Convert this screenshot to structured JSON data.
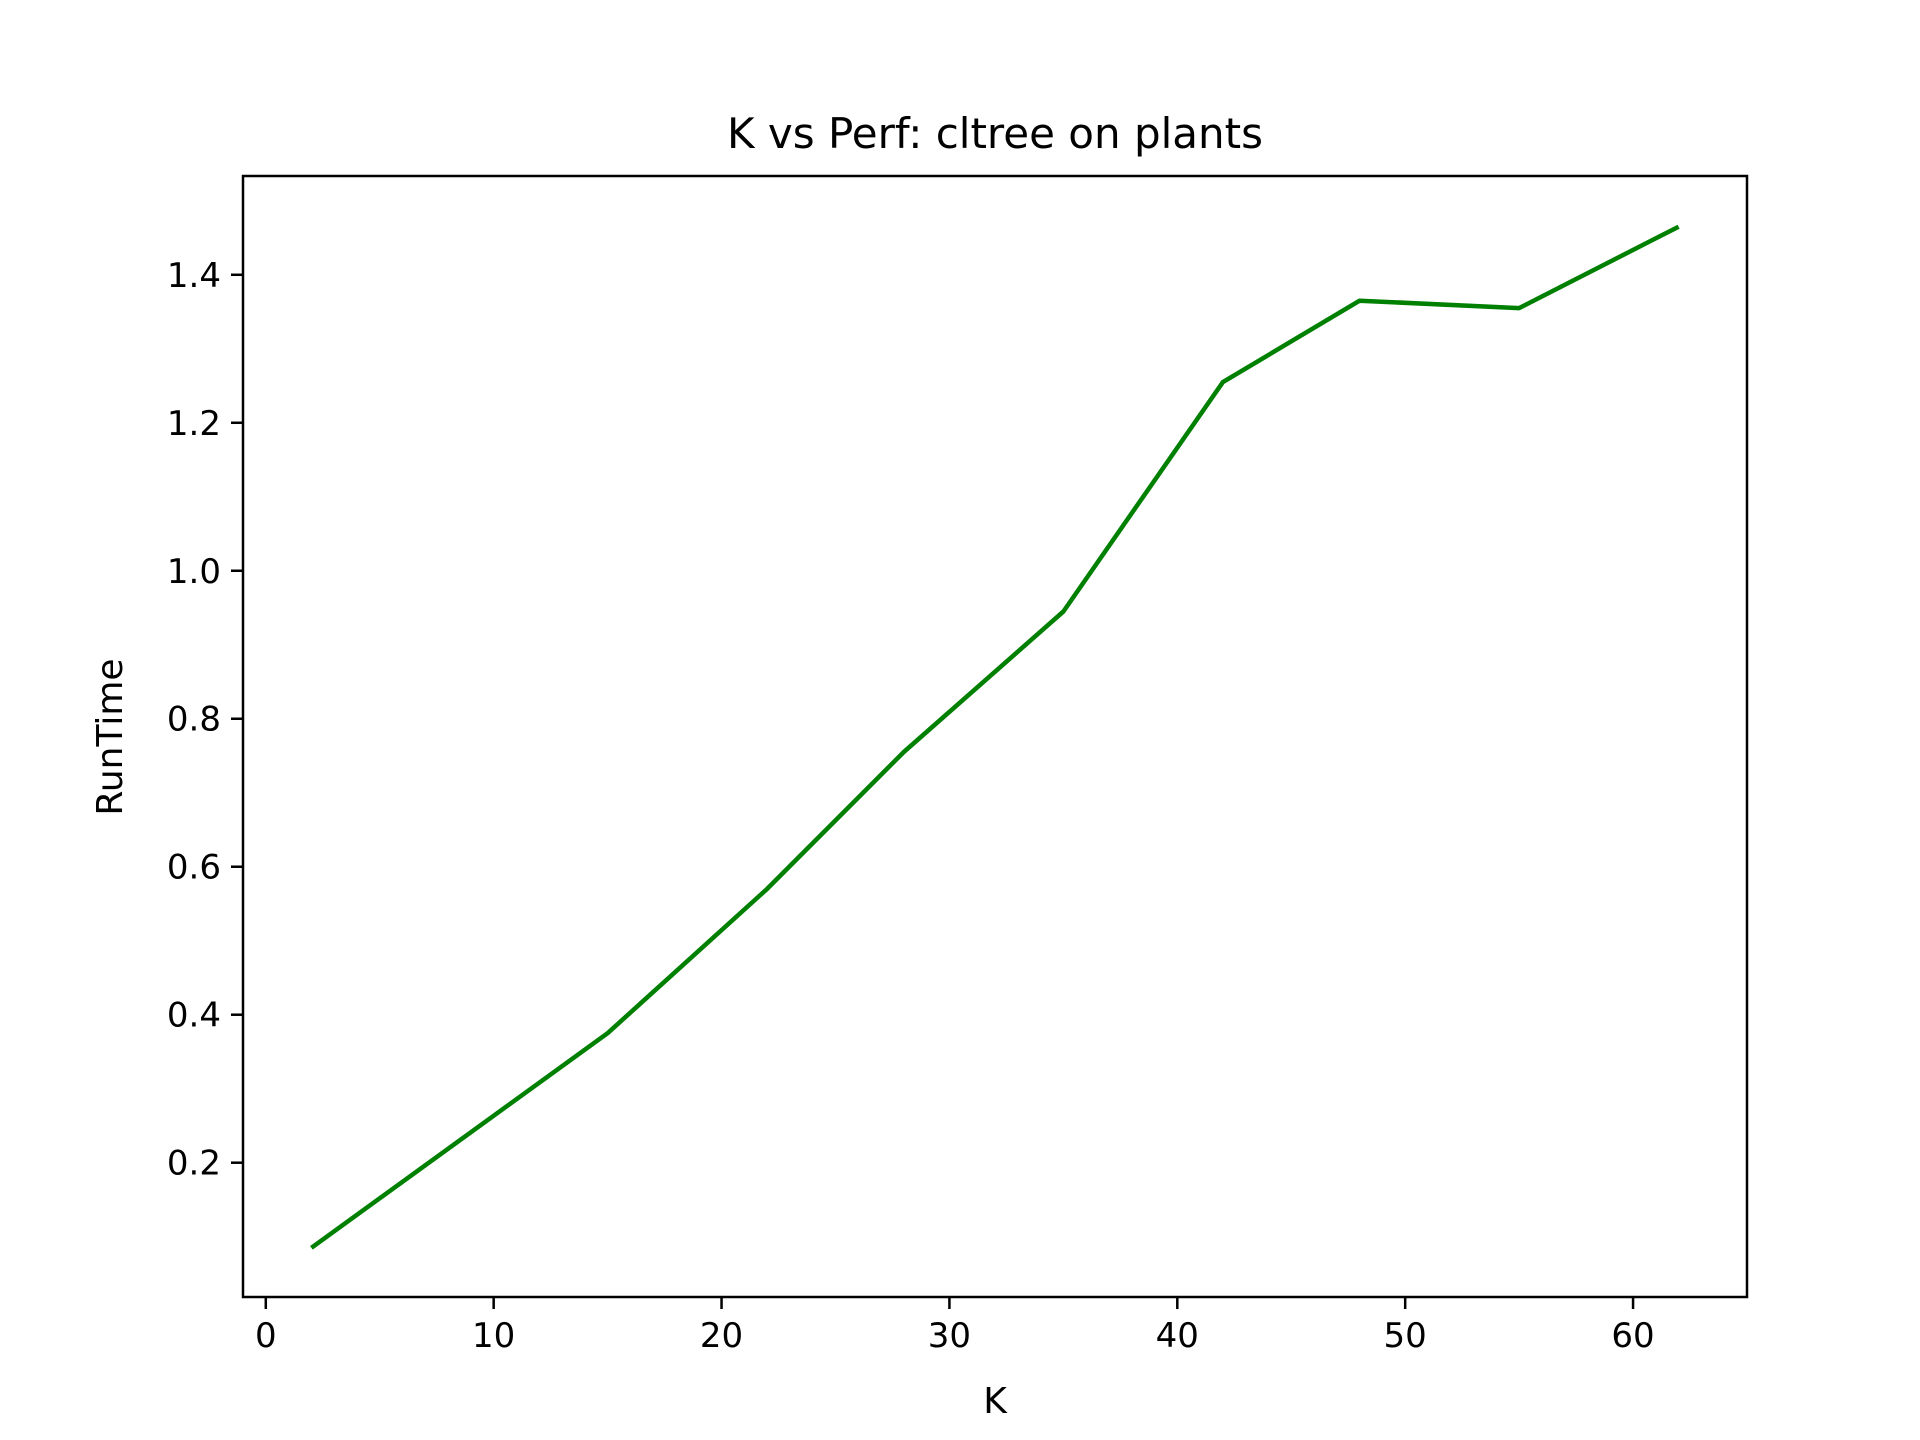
{
  "chart_data": {
    "type": "line",
    "title": "K vs Perf: cltree on plants",
    "xlabel": "K",
    "ylabel": "RunTime",
    "xlim": [
      -1,
      65
    ],
    "ylim": [
      0.0185,
      1.5335
    ],
    "xticks": [
      0,
      10,
      20,
      30,
      40,
      50,
      60
    ],
    "xtick_labels": [
      "0",
      "10",
      "20",
      "30",
      "40",
      "50",
      "60"
    ],
    "yticks": [
      0.2,
      0.4,
      0.6,
      0.8,
      1.0,
      1.2,
      1.4
    ],
    "ytick_labels": [
      "0.2",
      "0.4",
      "0.6",
      "0.8",
      "1.0",
      "1.2",
      "1.4"
    ],
    "grid": false,
    "series": [
      {
        "color": "#008000",
        "x": [
          2,
          15,
          22,
          28,
          35,
          42,
          48,
          55,
          62
        ],
        "y": [
          0.085,
          0.375,
          0.57,
          0.755,
          0.945,
          1.255,
          1.365,
          1.355,
          1.465
        ]
      }
    ]
  }
}
